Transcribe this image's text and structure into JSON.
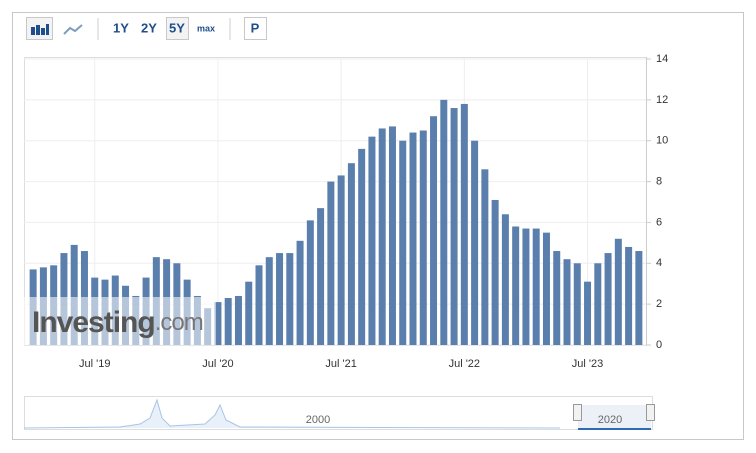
{
  "chart_data": {
    "type": "bar",
    "categories": [
      null,
      null,
      null,
      null,
      null,
      null,
      "Jul '19",
      null,
      null,
      null,
      null,
      null,
      null,
      null,
      null,
      null,
      null,
      null,
      "Jul '20",
      null,
      null,
      null,
      null,
      null,
      null,
      null,
      null,
      null,
      null,
      null,
      "Jul '21",
      null,
      null,
      null,
      null,
      null,
      null,
      null,
      null,
      null,
      null,
      null,
      "Jul '22",
      null,
      null,
      null,
      null,
      null,
      null,
      null,
      null,
      null,
      null,
      null,
      "Jul '23",
      null,
      null,
      null,
      null,
      null
    ],
    "values": [
      3.7,
      3.8,
      3.9,
      4.5,
      4.9,
      4.6,
      3.3,
      3.2,
      3.4,
      2.9,
      2.4,
      3.3,
      4.3,
      4.2,
      4.0,
      3.2,
      2.4,
      1.8,
      2.1,
      2.3,
      2.4,
      3.1,
      3.9,
      4.3,
      4.5,
      4.5,
      5.1,
      6.1,
      6.7,
      8.0,
      8.3,
      8.9,
      9.6,
      10.2,
      10.6,
      10.7,
      10.0,
      10.4,
      10.5,
      11.2,
      12.0,
      11.6,
      11.8,
      10.0,
      8.6,
      7.1,
      6.4,
      5.8,
      5.7,
      5.7,
      5.5,
      4.6,
      4.2,
      4.0,
      3.1,
      4.0,
      4.5,
      5.2,
      4.8,
      4.6
    ],
    "color": "#5b7fad",
    "ylim": [
      0,
      14
    ],
    "yticks": [
      0,
      2,
      4,
      6,
      8,
      10,
      12,
      14
    ],
    "grid": true
  },
  "toolbar": {
    "ranges": [
      "1Y",
      "2Y",
      "5Y",
      "max"
    ],
    "selected": "5Y",
    "extra": "P"
  },
  "watermark": [
    "Investing",
    ".com"
  ],
  "navigator": {
    "labels": [
      "2000",
      "2020"
    ]
  }
}
